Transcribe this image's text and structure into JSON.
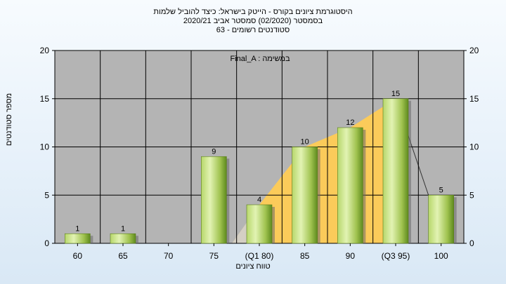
{
  "header": {
    "title": "היסטוגרמת ציונים בקורס - הייטק בישראל: כיצד להוביל שלמות",
    "subtitle1": "בסמסטר  (02/2020)  סמסטר אביב 2020/21",
    "subtitle2": "סטודנטים רשומים - 63"
  },
  "legend_label": "Final_A : במשימה",
  "colors": {
    "plot_bg": "#b4b4b4",
    "bar_light": "#d4eca0",
    "bar_dark": "#6f9a2a",
    "area_fill": "#ffcc55",
    "grid": "#000000"
  },
  "chart_data": {
    "type": "bar",
    "categories": [
      "60",
      "65",
      "70",
      "75",
      "(Q1 80)",
      "85",
      "90",
      "(Q3 95)",
      "100"
    ],
    "values": [
      1,
      1,
      0,
      9,
      4,
      10,
      12,
      15,
      5
    ],
    "data_labels": [
      "1",
      "1",
      "",
      "9",
      "4",
      "10",
      "12",
      "15",
      "5"
    ],
    "xlabel": "טווח ציונים",
    "ylabel": "מספר סטודנטים",
    "ylim": [
      0,
      20
    ],
    "yticks": [
      0,
      5,
      10,
      15,
      20
    ],
    "grid": true,
    "interquartile_band": {
      "from_category": "(Q1 80)",
      "to_category": "(Q3 95)"
    }
  }
}
